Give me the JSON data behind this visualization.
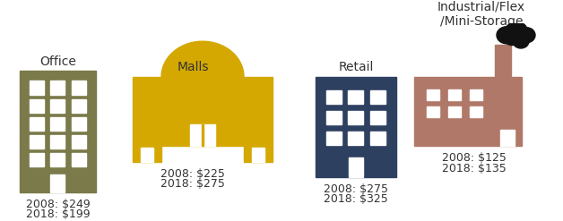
{
  "categories": [
    "Office",
    "Malls",
    "Retail",
    "Industrial/Flex\n/Mini-Storage"
  ],
  "label_2008": [
    "2008: $249",
    "2008: $225",
    "2008: $275",
    "2008: $125"
  ],
  "label_2018": [
    "2018: $199",
    "2018: $275",
    "2018: $325",
    "2018: $135"
  ],
  "building_colors": [
    "#7a7a4a",
    "#d4a800",
    "#2e4060",
    "#b07868"
  ],
  "window_color": "#ffffff",
  "background_color": "#ffffff",
  "text_color": "#333333",
  "cat_fontsize": 10,
  "label_fontsize": 9
}
